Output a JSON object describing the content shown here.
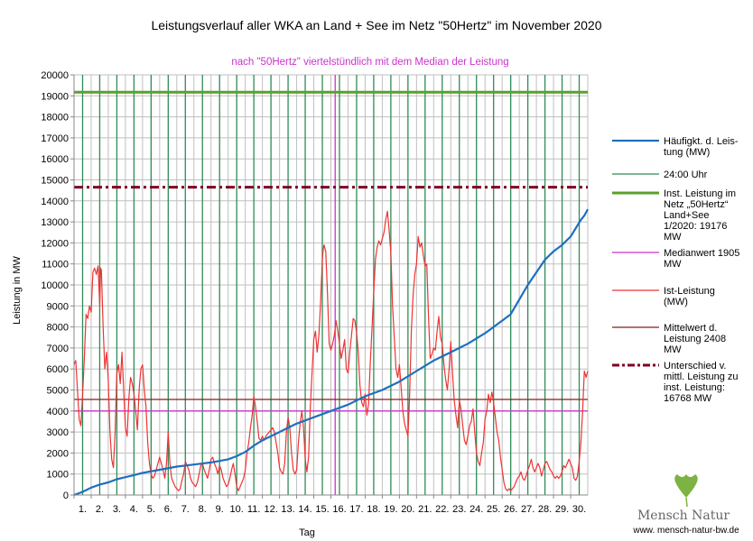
{
  "chart_data": {
    "type": "line",
    "title": "Leistungsverlauf aller WKA an Land + See im Netz \"50Hertz\" im November 2020",
    "subtitle": "nach \"50Hertz\" viertelstündlich mit dem Median der Leistung",
    "xlabel": "Tag",
    "ylabel": "Leistung in MW",
    "ylim": [
      0,
      20000
    ],
    "xlim": [
      0,
      30
    ],
    "y_ticks": [
      "0",
      "1000",
      "2000",
      "3000",
      "4000",
      "5000",
      "6000",
      "7000",
      "8000",
      "9000",
      "10000",
      "11000",
      "12000",
      "13000",
      "14000",
      "15000",
      "16000",
      "17000",
      "18000",
      "19000",
      "20000"
    ],
    "x_tick_labels": [
      "1.",
      "2.",
      "3.",
      "4.",
      "5.",
      "6.",
      "7.",
      "8.",
      "9.",
      "10.",
      "11.",
      "12.",
      "13.",
      "14.",
      "15.",
      "16.",
      "17.",
      "18.",
      "19.",
      "20.",
      "21.",
      "22.",
      "23.",
      "24.",
      "25.",
      "26.",
      "27.",
      "28.",
      "29.",
      "30."
    ],
    "colors": {
      "haeufigkeit": "#1f6fbf",
      "uhr": "#2e8b57",
      "installiert": "#5aa02c",
      "median": "#cc33cc",
      "ist": "#ee3333",
      "mittelwert": "#8b1a1a",
      "unterschied": "#800020",
      "grid": "#bfbfbf"
    },
    "legend": [
      {
        "key": "haeufigkeit",
        "text": "Häufigkt. d. Leis-|tung (MW)"
      },
      {
        "key": "uhr",
        "text": "24:00 Uhr"
      },
      {
        "key": "installiert",
        "text": "Inst. Leistung im|Netz „50Hertz“|Land+See|1/2020: 19176|MW"
      },
      {
        "key": "median",
        "text": "Medianwert 1905|MW"
      },
      {
        "key": "ist",
        "text": "Ist-Leistung|(MW)"
      },
      {
        "key": "mittelwert",
        "text": "Mittelwert d.|Leistung 2408|MW"
      },
      {
        "key": "unterschied",
        "text": "Unterschied v.|mittl. Leistung zu|inst. Leistung:|16768 MW"
      }
    ],
    "installed_capacity": 19176,
    "median_line": 4000,
    "mean_line": 4550,
    "difference_line": 14650,
    "median_day_marker": 15.25,
    "day_marks": [
      0.5,
      1.5,
      2.5,
      3.5,
      4.5,
      5.5,
      6.5,
      7.5,
      8.5,
      9.5,
      10.5,
      11.5,
      12.5,
      13.5,
      14.5,
      15.5,
      16.5,
      17.5,
      18.5,
      19.5,
      20.5,
      21.5,
      22.5,
      23.5,
      24.5,
      25.5,
      26.5,
      27.5,
      28.5,
      29.5
    ],
    "duration_curve": [
      [
        0,
        0
      ],
      [
        0.5,
        150
      ],
      [
        1,
        350
      ],
      [
        1.5,
        500
      ],
      [
        2,
        600
      ],
      [
        2.5,
        750
      ],
      [
        3,
        850
      ],
      [
        3.5,
        950
      ],
      [
        4,
        1050
      ],
      [
        5,
        1200
      ],
      [
        6,
        1350
      ],
      [
        7,
        1450
      ],
      [
        8,
        1550
      ],
      [
        9,
        1700
      ],
      [
        9.5,
        1850
      ],
      [
        10,
        2050
      ],
      [
        10.5,
        2350
      ],
      [
        11,
        2600
      ],
      [
        11.5,
        2800
      ],
      [
        12,
        3000
      ],
      [
        12.5,
        3200
      ],
      [
        13,
        3400
      ],
      [
        14,
        3700
      ],
      [
        15,
        4000
      ],
      [
        16,
        4300
      ],
      [
        17,
        4700
      ],
      [
        18,
        5000
      ],
      [
        19,
        5400
      ],
      [
        20,
        5900
      ],
      [
        21,
        6400
      ],
      [
        22,
        6800
      ],
      [
        23,
        7200
      ],
      [
        24,
        7700
      ],
      [
        25,
        8300
      ],
      [
        25.5,
        8600
      ],
      [
        26,
        9300
      ],
      [
        26.5,
        10000
      ],
      [
        27,
        10600
      ],
      [
        27.5,
        11200
      ],
      [
        28,
        11600
      ],
      [
        28.5,
        11900
      ],
      [
        29,
        12300
      ],
      [
        29.3,
        12700
      ],
      [
        29.6,
        13100
      ],
      [
        29.8,
        13300
      ],
      [
        30,
        13600
      ]
    ],
    "actual_power": [
      [
        0,
        6200
      ],
      [
        0.1,
        6400
      ],
      [
        0.2,
        5000
      ],
      [
        0.3,
        3600
      ],
      [
        0.4,
        3300
      ],
      [
        0.5,
        4800
      ],
      [
        0.6,
        6500
      ],
      [
        0.7,
        8600
      ],
      [
        0.8,
        8400
      ],
      [
        0.9,
        9000
      ],
      [
        1.0,
        8700
      ],
      [
        1.1,
        10600
      ],
      [
        1.2,
        10800
      ],
      [
        1.3,
        10500
      ],
      [
        1.4,
        10900
      ],
      [
        1.5,
        9000
      ],
      [
        1.55,
        10800
      ],
      [
        1.6,
        10700
      ],
      [
        1.7,
        8000
      ],
      [
        1.8,
        6000
      ],
      [
        1.9,
        6800
      ],
      [
        2.0,
        5500
      ],
      [
        2.1,
        3000
      ],
      [
        2.2,
        1700
      ],
      [
        2.3,
        1300
      ],
      [
        2.4,
        3000
      ],
      [
        2.5,
        5800
      ],
      [
        2.6,
        6200
      ],
      [
        2.7,
        5300
      ],
      [
        2.8,
        6800
      ],
      [
        2.9,
        5000
      ],
      [
        3.0,
        3200
      ],
      [
        3.1,
        2800
      ],
      [
        3.2,
        4600
      ],
      [
        3.3,
        5600
      ],
      [
        3.4,
        5300
      ],
      [
        3.5,
        4800
      ],
      [
        3.6,
        4000
      ],
      [
        3.7,
        3100
      ],
      [
        3.8,
        5000
      ],
      [
        3.9,
        6000
      ],
      [
        4.0,
        6200
      ],
      [
        4.1,
        5000
      ],
      [
        4.2,
        4200
      ],
      [
        4.3,
        2500
      ],
      [
        4.4,
        1500
      ],
      [
        4.5,
        1000
      ],
      [
        4.6,
        800
      ],
      [
        4.7,
        900
      ],
      [
        4.8,
        1200
      ],
      [
        4.9,
        1500
      ],
      [
        5.0,
        1800
      ],
      [
        5.1,
        1500
      ],
      [
        5.2,
        1200
      ],
      [
        5.3,
        800
      ],
      [
        5.4,
        1500
      ],
      [
        5.5,
        3000
      ],
      [
        5.6,
        1500
      ],
      [
        5.7,
        800
      ],
      [
        5.8,
        600
      ],
      [
        5.9,
        400
      ],
      [
        6.0,
        300
      ],
      [
        6.1,
        200
      ],
      [
        6.2,
        300
      ],
      [
        6.3,
        700
      ],
      [
        6.4,
        1000
      ],
      [
        6.5,
        1600
      ],
      [
        6.6,
        1400
      ],
      [
        6.7,
        1200
      ],
      [
        6.8,
        800
      ],
      [
        6.9,
        600
      ],
      [
        7.0,
        500
      ],
      [
        7.1,
        400
      ],
      [
        7.2,
        600
      ],
      [
        7.3,
        1000
      ],
      [
        7.4,
        1400
      ],
      [
        7.5,
        1500
      ],
      [
        7.6,
        1200
      ],
      [
        7.7,
        1000
      ],
      [
        7.8,
        800
      ],
      [
        7.9,
        1200
      ],
      [
        8.0,
        1700
      ],
      [
        8.1,
        1800
      ],
      [
        8.2,
        1500
      ],
      [
        8.3,
        1300
      ],
      [
        8.4,
        1000
      ],
      [
        8.5,
        1400
      ],
      [
        8.6,
        1200
      ],
      [
        8.7,
        800
      ],
      [
        8.8,
        600
      ],
      [
        8.9,
        400
      ],
      [
        9.0,
        500
      ],
      [
        9.1,
        800
      ],
      [
        9.2,
        1200
      ],
      [
        9.3,
        1500
      ],
      [
        9.4,
        1000
      ],
      [
        9.5,
        400
      ],
      [
        9.6,
        200
      ],
      [
        9.7,
        400
      ],
      [
        9.8,
        600
      ],
      [
        9.9,
        800
      ],
      [
        10.0,
        1200
      ],
      [
        10.1,
        2000
      ],
      [
        10.2,
        2500
      ],
      [
        10.3,
        3200
      ],
      [
        10.4,
        3800
      ],
      [
        10.5,
        4700
      ],
      [
        10.6,
        4200
      ],
      [
        10.7,
        3500
      ],
      [
        10.8,
        2700
      ],
      [
        10.9,
        2600
      ],
      [
        11.0,
        2800
      ],
      [
        11.1,
        2600
      ],
      [
        11.2,
        2800
      ],
      [
        11.3,
        2900
      ],
      [
        11.4,
        3000
      ],
      [
        11.5,
        3100
      ],
      [
        11.6,
        3200
      ],
      [
        11.7,
        3000
      ],
      [
        11.8,
        2500
      ],
      [
        11.9,
        2000
      ],
      [
        12.0,
        1300
      ],
      [
        12.1,
        1100
      ],
      [
        12.2,
        1000
      ],
      [
        12.3,
        1500
      ],
      [
        12.4,
        3000
      ],
      [
        12.5,
        3700
      ],
      [
        12.6,
        3200
      ],
      [
        12.7,
        2000
      ],
      [
        12.8,
        1200
      ],
      [
        12.9,
        1000
      ],
      [
        13.0,
        1200
      ],
      [
        13.1,
        2500
      ],
      [
        13.2,
        3400
      ],
      [
        13.3,
        4000
      ],
      [
        13.4,
        3200
      ],
      [
        13.5,
        1700
      ],
      [
        13.6,
        1100
      ],
      [
        13.7,
        1800
      ],
      [
        13.8,
        4200
      ],
      [
        13.9,
        5800
      ],
      [
        14.0,
        7400
      ],
      [
        14.1,
        7800
      ],
      [
        14.2,
        6800
      ],
      [
        14.3,
        7600
      ],
      [
        14.4,
        9200
      ],
      [
        14.5,
        11200
      ],
      [
        14.55,
        11700
      ],
      [
        14.6,
        11900
      ],
      [
        14.7,
        11600
      ],
      [
        14.8,
        9600
      ],
      [
        14.9,
        7200
      ],
      [
        15.0,
        6900
      ],
      [
        15.1,
        7200
      ],
      [
        15.2,
        7600
      ],
      [
        15.3,
        8300
      ],
      [
        15.4,
        7800
      ],
      [
        15.5,
        7200
      ],
      [
        15.6,
        6500
      ],
      [
        15.7,
        6900
      ],
      [
        15.8,
        7400
      ],
      [
        15.9,
        6000
      ],
      [
        16.0,
        5800
      ],
      [
        16.1,
        6800
      ],
      [
        16.2,
        7600
      ],
      [
        16.3,
        8400
      ],
      [
        16.4,
        8300
      ],
      [
        16.5,
        7700
      ],
      [
        16.6,
        6800
      ],
      [
        16.7,
        5200
      ],
      [
        16.8,
        4400
      ],
      [
        16.9,
        4200
      ],
      [
        17.0,
        4800
      ],
      [
        17.1,
        3800
      ],
      [
        17.2,
        4300
      ],
      [
        17.3,
        6300
      ],
      [
        17.4,
        7900
      ],
      [
        17.5,
        9600
      ],
      [
        17.6,
        11200
      ],
      [
        17.7,
        11800
      ],
      [
        17.8,
        12100
      ],
      [
        17.9,
        11900
      ],
      [
        18.0,
        12200
      ],
      [
        18.1,
        12500
      ],
      [
        18.2,
        13100
      ],
      [
        18.3,
        13500
      ],
      [
        18.4,
        12600
      ],
      [
        18.5,
        11500
      ],
      [
        18.6,
        9000
      ],
      [
        18.7,
        7500
      ],
      [
        18.8,
        6000
      ],
      [
        18.9,
        5600
      ],
      [
        19.0,
        6200
      ],
      [
        19.1,
        5100
      ],
      [
        19.2,
        4000
      ],
      [
        19.3,
        3400
      ],
      [
        19.4,
        3100
      ],
      [
        19.5,
        2800
      ],
      [
        19.6,
        4800
      ],
      [
        19.7,
        7800
      ],
      [
        19.8,
        9500
      ],
      [
        19.9,
        10500
      ],
      [
        20.0,
        11000
      ],
      [
        20.1,
        12300
      ],
      [
        20.2,
        11800
      ],
      [
        20.3,
        12000
      ],
      [
        20.4,
        11400
      ],
      [
        20.5,
        10900
      ],
      [
        20.6,
        11000
      ],
      [
        20.7,
        8500
      ],
      [
        20.8,
        6500
      ],
      [
        20.9,
        6700
      ],
      [
        21.0,
        7000
      ],
      [
        21.1,
        6900
      ],
      [
        21.2,
        7800
      ],
      [
        21.3,
        8500
      ],
      [
        21.4,
        7500
      ],
      [
        21.5,
        7200
      ],
      [
        21.6,
        6200
      ],
      [
        21.7,
        5500
      ],
      [
        21.8,
        5000
      ],
      [
        21.9,
        6000
      ],
      [
        22.0,
        7300
      ],
      [
        22.1,
        5800
      ],
      [
        22.2,
        4500
      ],
      [
        22.3,
        3800
      ],
      [
        22.4,
        3200
      ],
      [
        22.5,
        4500
      ],
      [
        22.6,
        4100
      ],
      [
        22.7,
        3300
      ],
      [
        22.8,
        2600
      ],
      [
        22.9,
        2400
      ],
      [
        23.0,
        2800
      ],
      [
        23.1,
        3300
      ],
      [
        23.2,
        3500
      ],
      [
        23.3,
        4100
      ],
      [
        23.4,
        3000
      ],
      [
        23.5,
        2000
      ],
      [
        23.6,
        1600
      ],
      [
        23.7,
        1400
      ],
      [
        23.8,
        2000
      ],
      [
        23.9,
        2500
      ],
      [
        24.0,
        3600
      ],
      [
        24.1,
        4000
      ],
      [
        24.2,
        4800
      ],
      [
        24.3,
        4400
      ],
      [
        24.4,
        4900
      ],
      [
        24.5,
        4400
      ],
      [
        24.6,
        3700
      ],
      [
        24.7,
        3000
      ],
      [
        24.8,
        2600
      ],
      [
        24.9,
        1800
      ],
      [
        25.0,
        1200
      ],
      [
        25.1,
        600
      ],
      [
        25.2,
        300
      ],
      [
        25.3,
        200
      ],
      [
        25.4,
        300
      ],
      [
        25.5,
        200
      ],
      [
        25.6,
        300
      ],
      [
        25.7,
        400
      ],
      [
        25.8,
        600
      ],
      [
        25.9,
        800
      ],
      [
        26.0,
        900
      ],
      [
        26.1,
        1100
      ],
      [
        26.2,
        800
      ],
      [
        26.3,
        700
      ],
      [
        26.4,
        900
      ],
      [
        26.5,
        1200
      ],
      [
        26.6,
        1400
      ],
      [
        26.7,
        1700
      ],
      [
        26.8,
        1300
      ],
      [
        26.9,
        1100
      ],
      [
        27.0,
        1300
      ],
      [
        27.1,
        1500
      ],
      [
        27.2,
        1300
      ],
      [
        27.3,
        900
      ],
      [
        27.4,
        1200
      ],
      [
        27.5,
        1500
      ],
      [
        27.6,
        1600
      ],
      [
        27.7,
        1400
      ],
      [
        27.8,
        1200
      ],
      [
        27.9,
        1100
      ],
      [
        28.0,
        900
      ],
      [
        28.1,
        800
      ],
      [
        28.2,
        900
      ],
      [
        28.3,
        800
      ],
      [
        28.4,
        900
      ],
      [
        28.5,
        1100
      ],
      [
        28.6,
        1400
      ],
      [
        28.7,
        1300
      ],
      [
        28.8,
        1500
      ],
      [
        28.9,
        1700
      ],
      [
        29.0,
        1500
      ],
      [
        29.1,
        1300
      ],
      [
        29.2,
        800
      ],
      [
        29.3,
        700
      ],
      [
        29.4,
        900
      ],
      [
        29.5,
        1600
      ],
      [
        29.6,
        2500
      ],
      [
        29.7,
        4000
      ],
      [
        29.8,
        5900
      ],
      [
        29.9,
        5600
      ],
      [
        30.0,
        5900
      ]
    ]
  },
  "branding": {
    "name": "Mensch Natur",
    "url": "www. mensch-natur-bw.de"
  }
}
